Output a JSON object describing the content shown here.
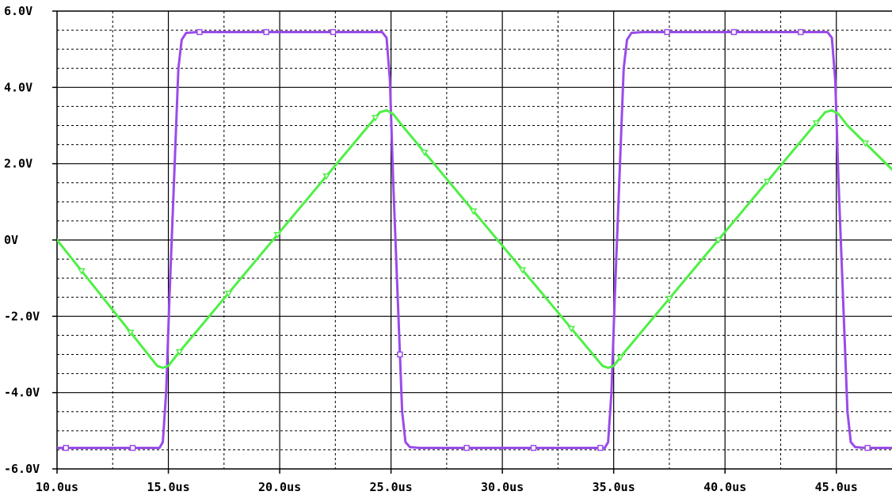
{
  "chart_data": {
    "type": "line",
    "title": "",
    "xlabel": "",
    "ylabel": "",
    "xlim": [
      10,
      47.5
    ],
    "ylim": [
      -6,
      6
    ],
    "grid": true,
    "legend": "none",
    "x_ticks": [
      "10.0us",
      "15.0us",
      "20.0us",
      "25.0us",
      "30.0us",
      "35.0us",
      "40.0us",
      "45.0us"
    ],
    "x_tick_values": [
      10,
      15,
      20,
      25,
      30,
      35,
      40,
      45
    ],
    "y_ticks": [
      "6.0V",
      "4.0V",
      "2.0V",
      "0V",
      "-2.0V",
      "-4.0V",
      "-6.0V"
    ],
    "y_tick_values": [
      6,
      4,
      2,
      0,
      -2,
      -4,
      -6
    ],
    "series": [
      {
        "color": "#9a4bea",
        "marker": "square",
        "points": [
          [
            10,
            -5.45
          ],
          [
            14.6,
            -5.45
          ],
          [
            14.75,
            -5.3
          ],
          [
            14.9,
            -4.0
          ],
          [
            15.05,
            -1.5
          ],
          [
            15.25,
            1.5
          ],
          [
            15.45,
            4.5
          ],
          [
            15.6,
            5.25
          ],
          [
            15.8,
            5.43
          ],
          [
            16.3,
            5.45
          ],
          [
            24.6,
            5.45
          ],
          [
            24.8,
            5.3
          ],
          [
            24.95,
            4.2
          ],
          [
            25.1,
            1.5
          ],
          [
            25.3,
            -1.5
          ],
          [
            25.5,
            -4.5
          ],
          [
            25.65,
            -5.3
          ],
          [
            25.85,
            -5.43
          ],
          [
            26.3,
            -5.45
          ],
          [
            34.6,
            -5.45
          ],
          [
            34.75,
            -5.3
          ],
          [
            34.9,
            -4.0
          ],
          [
            35.05,
            -1.5
          ],
          [
            35.25,
            1.5
          ],
          [
            35.45,
            4.5
          ],
          [
            35.6,
            5.25
          ],
          [
            35.8,
            5.43
          ],
          [
            36.3,
            5.45
          ],
          [
            44.6,
            5.45
          ],
          [
            44.8,
            5.3
          ],
          [
            44.95,
            4.2
          ],
          [
            45.1,
            1.5
          ],
          [
            45.3,
            -1.5
          ],
          [
            45.5,
            -4.5
          ],
          [
            45.65,
            -5.3
          ],
          [
            45.85,
            -5.43
          ],
          [
            46.3,
            -5.45
          ],
          [
            47.5,
            -5.45
          ]
        ]
      },
      {
        "color": "#4df045",
        "marker": "triangle",
        "points": [
          [
            10,
            0
          ],
          [
            14.5,
            -3.3
          ],
          [
            14.75,
            -3.35
          ],
          [
            15.0,
            -3.3
          ],
          [
            15.4,
            -3.0
          ],
          [
            24.5,
            3.35
          ],
          [
            24.8,
            3.4
          ],
          [
            25.1,
            3.3
          ],
          [
            25.5,
            3.0
          ],
          [
            34.5,
            -3.3
          ],
          [
            34.75,
            -3.35
          ],
          [
            35.0,
            -3.3
          ],
          [
            35.4,
            -3.0
          ],
          [
            44.5,
            3.35
          ],
          [
            44.8,
            3.4
          ],
          [
            45.1,
            3.3
          ],
          [
            45.5,
            3.0
          ],
          [
            47.5,
            1.85
          ]
        ]
      }
    ]
  },
  "colors": {
    "axis": "#000000",
    "grid": "#000000",
    "background": "#ffffff"
  }
}
